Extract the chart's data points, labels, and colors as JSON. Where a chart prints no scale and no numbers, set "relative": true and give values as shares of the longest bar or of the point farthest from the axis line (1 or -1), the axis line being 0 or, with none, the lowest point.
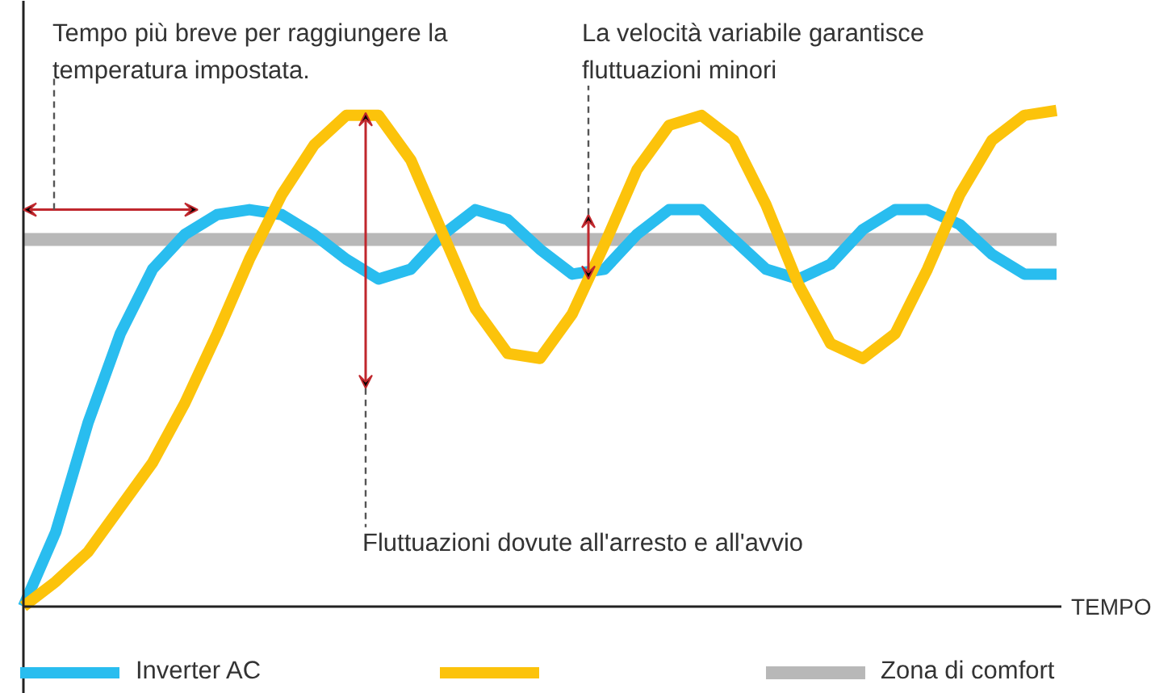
{
  "chart_data": {
    "type": "line",
    "relative": true,
    "xlabel": "TEMPO",
    "categories": [
      null,
      null,
      null,
      null,
      null,
      null,
      null,
      null,
      null,
      null,
      null,
      null,
      null,
      null,
      null,
      null,
      null,
      null,
      null,
      null,
      null,
      null,
      null,
      null,
      null,
      null,
      null,
      null,
      null,
      null,
      null,
      null,
      null
    ],
    "series": [
      {
        "name": "Inverter AC",
        "color": "#29bdef",
        "values": [
          0,
          0.15,
          0.37,
          0.55,
          0.68,
          0.75,
          0.79,
          0.8,
          0.79,
          0.75,
          0.7,
          0.66,
          0.68,
          0.75,
          0.8,
          0.78,
          0.72,
          0.67,
          0.68,
          0.75,
          0.8,
          0.8,
          0.74,
          0.68,
          0.66,
          0.69,
          0.76,
          0.8,
          0.8,
          0.77,
          0.71,
          0.67,
          0.67
        ]
      },
      {
        "color": "#fcc30b",
        "values": [
          0,
          0.05,
          0.11,
          0.2,
          0.29,
          0.41,
          0.55,
          0.7,
          0.83,
          0.93,
          0.99,
          0.99,
          0.9,
          0.75,
          0.6,
          0.51,
          0.5,
          0.59,
          0.73,
          0.88,
          0.97,
          0.99,
          0.94,
          0.81,
          0.65,
          0.53,
          0.5,
          0.55,
          0.68,
          0.83,
          0.94,
          0.99,
          1.0
        ]
      },
      {
        "name": "Zona di comfort",
        "color": "#b8b8b8",
        "values": [
          0.74,
          0.74,
          0.74,
          0.74,
          0.74,
          0.74,
          0.74,
          0.74,
          0.74,
          0.74,
          0.74,
          0.74,
          0.74,
          0.74,
          0.74,
          0.74,
          0.74,
          0.74,
          0.74,
          0.74,
          0.74,
          0.74,
          0.74,
          0.74,
          0.74,
          0.74,
          0.74,
          0.74,
          0.74,
          0.74,
          0.74,
          0.74,
          0.74
        ]
      }
    ],
    "annotations": [
      "Tempo più breve per raggiungere la\ntemperatura impostata.",
      "La velocità variabile garantisce\nfluttuazioni minori",
      "Fluttuazioni dovute all'arresto e all'avvio"
    ],
    "legend": "bottom",
    "grid": false,
    "marker": "none",
    "line_style": "solid"
  }
}
